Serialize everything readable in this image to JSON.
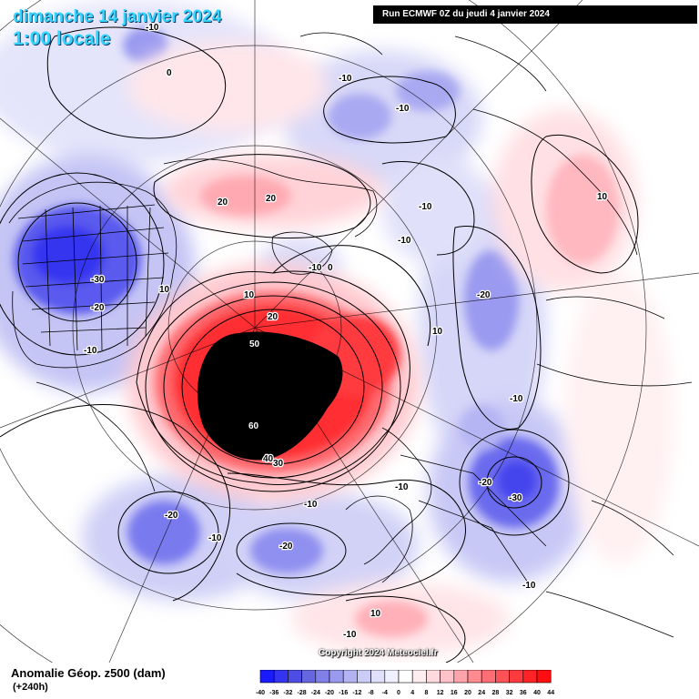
{
  "header": {
    "date": "dimanche 14 janvier 2024",
    "time": "1:00 locale",
    "run": "Run ECMWF 0Z du jeudi 4 janvier 2024"
  },
  "footer": {
    "title": "Anomalie Géop. z500 (dam)",
    "lead": "(+240h)",
    "copyright": "Copyright 2024 Meteociel.fr"
  },
  "legend": {
    "values": [
      "-40",
      "-36",
      "-32",
      "-28",
      "-24",
      "-20",
      "-16",
      "-12",
      "-8",
      "-4",
      "0",
      "4",
      "8",
      "12",
      "16",
      "20",
      "24",
      "28",
      "32",
      "36",
      "40",
      "44"
    ],
    "colors": [
      "#1a1aff",
      "#3333f0",
      "#4d4de6",
      "#6666e0",
      "#8080e8",
      "#9999ee",
      "#b3b3f3",
      "#ccccf8",
      "#e0e0fb",
      "#f0f0fe",
      "#ffffff",
      "#ffeef0",
      "#ffd9dd",
      "#ffc2c8",
      "#ffa3ab",
      "#ff8a90",
      "#ff6e74",
      "#ff5257",
      "#ff3a3e",
      "#ff2226",
      "#ff0d10"
    ]
  },
  "map_labels": [
    {
      "text": "-10",
      "kind": "contour"
    },
    {
      "text": "0",
      "kind": "contour"
    },
    {
      "text": "-10",
      "kind": "contour"
    },
    {
      "text": "-10",
      "kind": "contour"
    },
    {
      "text": "10",
      "kind": "contour"
    },
    {
      "text": "20",
      "kind": "contour"
    },
    {
      "text": "20",
      "kind": "contour"
    },
    {
      "text": "-10",
      "kind": "contour"
    },
    {
      "text": "-10",
      "kind": "contour"
    },
    {
      "text": "-10",
      "kind": "contour"
    },
    {
      "text": "0",
      "kind": "contour"
    },
    {
      "text": "-30",
      "kind": "contour"
    },
    {
      "text": "-20",
      "kind": "contour"
    },
    {
      "text": "10",
      "kind": "contour"
    },
    {
      "text": "-10",
      "kind": "contour"
    },
    {
      "text": "10",
      "kind": "contour"
    },
    {
      "text": "20",
      "kind": "contour"
    },
    {
      "text": "50",
      "kind": "contour-dark"
    },
    {
      "text": "60",
      "kind": "contour-dark"
    },
    {
      "text": "40",
      "kind": "contour"
    },
    {
      "text": "30",
      "kind": "contour"
    },
    {
      "text": "-20",
      "kind": "contour"
    },
    {
      "text": "10",
      "kind": "contour"
    },
    {
      "text": "-10",
      "kind": "contour"
    },
    {
      "text": "-20",
      "kind": "contour"
    },
    {
      "text": "-30",
      "kind": "contour"
    },
    {
      "text": "-10",
      "kind": "contour"
    },
    {
      "text": "-20",
      "kind": "contour"
    },
    {
      "text": "-10",
      "kind": "contour"
    },
    {
      "text": "-10",
      "kind": "contour"
    },
    {
      "text": "-20",
      "kind": "contour"
    },
    {
      "text": "-10",
      "kind": "contour"
    },
    {
      "text": "10",
      "kind": "contour"
    },
    {
      "text": "-10",
      "kind": "contour"
    }
  ]
}
